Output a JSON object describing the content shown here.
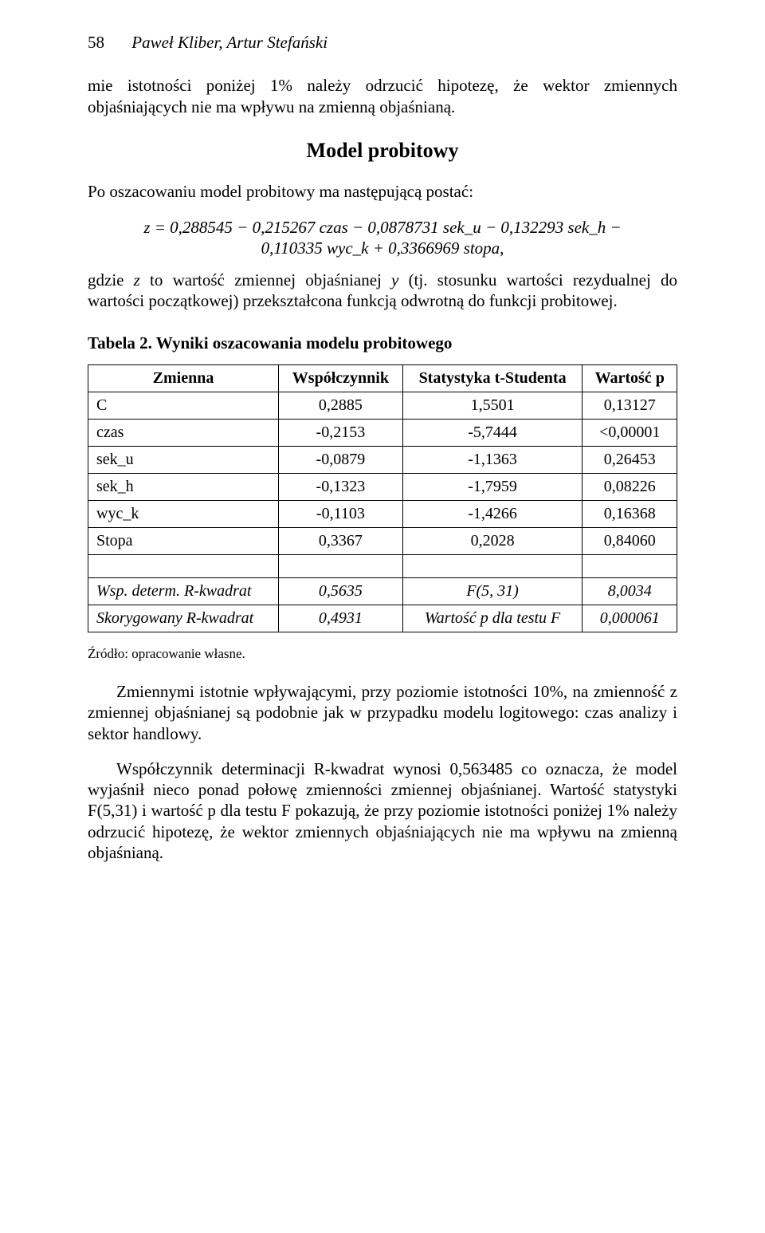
{
  "header": {
    "page_number": "58",
    "authors": "Paweł Kliber, Artur Stefański"
  },
  "intro_para": "mie istotności poniżej 1% należy odrzucić hipotezę, że wektor zmiennych objaśniających nie ma wpływu na zmienną objaśnianą.",
  "section_title": "Model probitowy",
  "model_intro": "Po oszacowaniu model probitowy ma następującą postać:",
  "formula_line1": "z = 0,288545 − 0,215267 czas − 0,0878731 sek_u − 0,132293 sek_h −",
  "formula_line2": "0,110335 wyc_k + 0,3366969 stopa,",
  "after_formula_prefix": "gdzie ",
  "after_formula_mid1": " to wartość zmiennej objaśnianej ",
  "after_formula_suffix": " (tj. stosunku wartości rezydualnej do wartości początkowej) przekształcona funkcją odwrotną do funkcji probitowej.",
  "zvar": "z",
  "yvar": "y",
  "table": {
    "caption": "Tabela 2. Wyniki oszacowania modelu probitowego",
    "columns": [
      "Zmienna",
      "Współczynnik",
      "Statystyka t-Studenta",
      "Wartość p"
    ],
    "rows": [
      [
        "C",
        "0,2885",
        "1,5501",
        "0,13127"
      ],
      [
        "czas",
        "-0,2153",
        "-5,7444",
        "<0,00001"
      ],
      [
        "sek_u",
        "-0,0879",
        "-1,1363",
        "0,26453"
      ],
      [
        "sek_h",
        "-0,1323",
        "-1,7959",
        "0,08226"
      ],
      [
        "wyc_k",
        "-0,1103",
        "-1,4266",
        "0,16368"
      ],
      [
        "Stopa",
        "0,3367",
        "0,2028",
        "0,84060"
      ]
    ],
    "footer": [
      [
        "Wsp. determ. R-kwadrat",
        "0,5635",
        "F(5, 31)",
        "8,0034"
      ],
      [
        "Skorygowany R-kwadrat",
        "0,4931",
        "Wartość p dla testu F",
        "0,000061"
      ]
    ]
  },
  "source_line": "Źródło: opracowanie własne.",
  "conclusion_p1": "Zmiennymi istotnie wpływającymi, przy poziomie istotności 10%, na zmienność z zmiennej objaśnianej są podobnie jak w przypadku modelu logitowego: czas analizy i sektor handlowy.",
  "conclusion_p2": "Współczynnik determinacji R-kwadrat wynosi 0,563485 co oznacza, że model wyjaśnił nieco ponad połowę zmienności zmiennej objaśnianej. Wartość statystyki F(5,31) i wartość p dla testu F pokazują, że przy poziomie istotności poniżej 1% należy odrzucić hipotezę, że wektor zmiennych objaśniających nie ma wpływu na zmienną objaśnianą.",
  "style": {
    "font_family": "Times New Roman",
    "body_font_size_pt": 16,
    "title_font_size_pt": 19,
    "background": "#ffffff",
    "text_color": "#000000",
    "table_border_color": "#000000"
  }
}
